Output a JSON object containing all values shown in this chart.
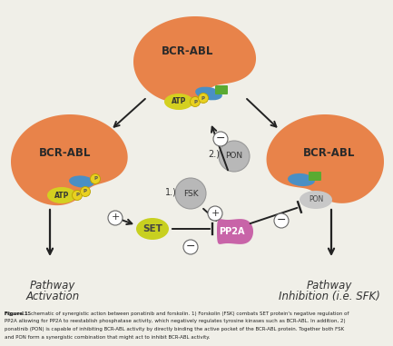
{
  "bg_color": "#f0efe8",
  "bcr_abl_color": "#e8834a",
  "atp_color": "#d4d020",
  "blue_shape_color": "#4a8fc4",
  "green_shape_color": "#5aaa32",
  "set_color": "#c8d020",
  "pp2a_color": "#c864a8",
  "fsk_color": "#b8b8b8",
  "pon_color": "#b8b8b8",
  "pon_right_color": "#c8c8c8",
  "arrow_color": "#222222",
  "text_color": "#333333",
  "p_color": "#e8d020",
  "p_edge_color": "#b8a000",
  "caption_lines": [
    "Figure 1: Schematic of synergistic action between ponatinib and forskolin. 1) Forskolin (FSK) combats SET protein's negative regulation of",
    "PP2A allowing for PP2A to reestablish phosphatase activity, which negatively regulates tyrosine kinases such as BCR-ABL. In addition, 2)",
    "ponatinib (PON) is capable of inhibiting BCR-ABL activity by directly binding the active pocket of the BCR-ABL protein. Together both FSK",
    "and PON form a synergistic combination that might act to inhibit BCR-ABL activity."
  ]
}
